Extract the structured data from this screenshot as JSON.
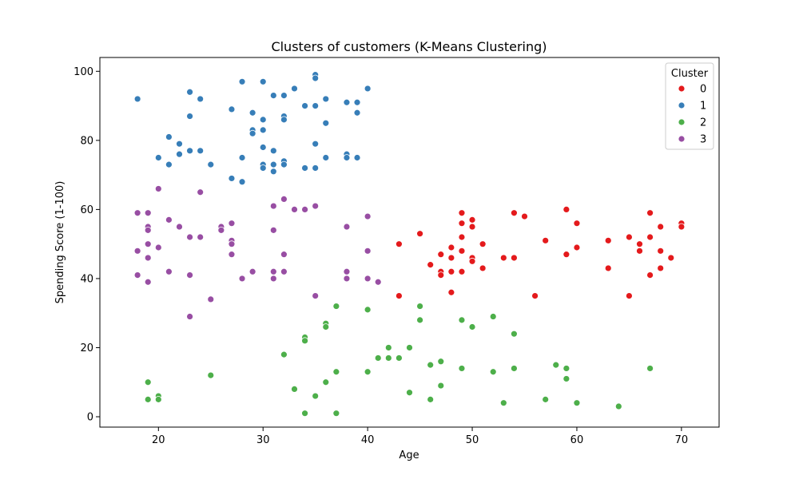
{
  "chart_data": {
    "type": "scatter",
    "title": "Clusters of customers (K-Means Clustering)",
    "xlabel": "Age",
    "ylabel": "Spending Score (1-100)",
    "xlim": [
      14.4,
      73.6
    ],
    "ylim": [
      -3.0,
      104.0
    ],
    "xticks": [
      20,
      30,
      40,
      50,
      60,
      70
    ],
    "yticks": [
      0,
      20,
      40,
      60,
      80,
      100
    ],
    "grid": false,
    "legend": {
      "title": "Cluster",
      "position": "upper-right"
    },
    "series": [
      {
        "name": "0",
        "color": "#e41a1c",
        "points": [
          [
            43,
            50
          ],
          [
            43,
            35
          ],
          [
            45,
            53
          ],
          [
            46,
            44
          ],
          [
            47,
            42
          ],
          [
            47,
            41
          ],
          [
            47,
            47
          ],
          [
            48,
            36
          ],
          [
            48,
            42
          ],
          [
            48,
            46
          ],
          [
            48,
            49
          ],
          [
            49,
            59
          ],
          [
            49,
            56
          ],
          [
            49,
            52
          ],
          [
            49,
            48
          ],
          [
            49,
            42
          ],
          [
            50,
            57
          ],
          [
            50,
            55
          ],
          [
            50,
            46
          ],
          [
            50,
            45
          ],
          [
            51,
            50
          ],
          [
            51,
            43
          ],
          [
            53,
            46
          ],
          [
            54,
            59
          ],
          [
            54,
            46
          ],
          [
            55,
            58
          ],
          [
            56,
            35
          ],
          [
            57,
            51
          ],
          [
            59,
            60
          ],
          [
            59,
            47
          ],
          [
            60,
            56
          ],
          [
            60,
            49
          ],
          [
            63,
            51
          ],
          [
            63,
            43
          ],
          [
            65,
            52
          ],
          [
            65,
            35
          ],
          [
            66,
            50
          ],
          [
            66,
            48
          ],
          [
            67,
            59
          ],
          [
            67,
            52
          ],
          [
            67,
            41
          ],
          [
            68,
            55
          ],
          [
            68,
            48
          ],
          [
            68,
            43
          ],
          [
            69,
            46
          ],
          [
            70,
            56
          ],
          [
            70,
            55
          ]
        ]
      },
      {
        "name": "1",
        "color": "#377eb8",
        "points": [
          [
            18,
            92
          ],
          [
            20,
            75
          ],
          [
            21,
            81
          ],
          [
            21,
            73
          ],
          [
            22,
            79
          ],
          [
            22,
            76
          ],
          [
            23,
            94
          ],
          [
            23,
            87
          ],
          [
            23,
            77
          ],
          [
            24,
            92
          ],
          [
            24,
            77
          ],
          [
            25,
            73
          ],
          [
            27,
            89
          ],
          [
            27,
            69
          ],
          [
            28,
            97
          ],
          [
            28,
            75
          ],
          [
            28,
            68
          ],
          [
            29,
            88
          ],
          [
            29,
            83
          ],
          [
            29,
            82
          ],
          [
            30,
            97
          ],
          [
            30,
            86
          ],
          [
            30,
            83
          ],
          [
            30,
            78
          ],
          [
            30,
            73
          ],
          [
            30,
            72
          ],
          [
            31,
            93
          ],
          [
            31,
            77
          ],
          [
            31,
            73
          ],
          [
            31,
            71
          ],
          [
            32,
            93
          ],
          [
            32,
            87
          ],
          [
            32,
            86
          ],
          [
            32,
            74
          ],
          [
            32,
            73
          ],
          [
            33,
            95
          ],
          [
            34,
            90
          ],
          [
            34,
            72
          ],
          [
            35,
            99
          ],
          [
            35,
            98
          ],
          [
            35,
            90
          ],
          [
            35,
            79
          ],
          [
            35,
            72
          ],
          [
            36,
            92
          ],
          [
            36,
            85
          ],
          [
            36,
            75
          ],
          [
            38,
            91
          ],
          [
            38,
            76
          ],
          [
            38,
            75
          ],
          [
            39,
            91
          ],
          [
            39,
            88
          ],
          [
            39,
            75
          ],
          [
            40,
            95
          ]
        ]
      },
      {
        "name": "2",
        "color": "#4daf4a",
        "points": [
          [
            19,
            10
          ],
          [
            19,
            5
          ],
          [
            20,
            6
          ],
          [
            20,
            5
          ],
          [
            25,
            12
          ],
          [
            32,
            18
          ],
          [
            33,
            8
          ],
          [
            34,
            23
          ],
          [
            34,
            22
          ],
          [
            34,
            1
          ],
          [
            35,
            6
          ],
          [
            36,
            27
          ],
          [
            36,
            26
          ],
          [
            36,
            10
          ],
          [
            37,
            32
          ],
          [
            37,
            13
          ],
          [
            37,
            1
          ],
          [
            40,
            31
          ],
          [
            40,
            13
          ],
          [
            41,
            17
          ],
          [
            42,
            20
          ],
          [
            42,
            17
          ],
          [
            43,
            17
          ],
          [
            44,
            20
          ],
          [
            44,
            7
          ],
          [
            45,
            32
          ],
          [
            45,
            28
          ],
          [
            46,
            15
          ],
          [
            46,
            5
          ],
          [
            47,
            16
          ],
          [
            47,
            9
          ],
          [
            49,
            28
          ],
          [
            49,
            14
          ],
          [
            50,
            26
          ],
          [
            52,
            29
          ],
          [
            52,
            13
          ],
          [
            53,
            4
          ],
          [
            54,
            24
          ],
          [
            54,
            14
          ],
          [
            57,
            5
          ],
          [
            58,
            15
          ],
          [
            59,
            14
          ],
          [
            59,
            11
          ],
          [
            60,
            4
          ],
          [
            64,
            3
          ],
          [
            67,
            14
          ]
        ]
      },
      {
        "name": "3",
        "color": "#984ea3",
        "points": [
          [
            18,
            59
          ],
          [
            18,
            48
          ],
          [
            18,
            41
          ],
          [
            19,
            59
          ],
          [
            19,
            55
          ],
          [
            19,
            54
          ],
          [
            19,
            50
          ],
          [
            19,
            46
          ],
          [
            19,
            39
          ],
          [
            20,
            66
          ],
          [
            20,
            49
          ],
          [
            21,
            57
          ],
          [
            21,
            42
          ],
          [
            22,
            55
          ],
          [
            23,
            52
          ],
          [
            23,
            41
          ],
          [
            23,
            29
          ],
          [
            24,
            65
          ],
          [
            24,
            52
          ],
          [
            25,
            34
          ],
          [
            26,
            55
          ],
          [
            26,
            54
          ],
          [
            27,
            56
          ],
          [
            27,
            51
          ],
          [
            27,
            50
          ],
          [
            27,
            47
          ],
          [
            28,
            40
          ],
          [
            29,
            42
          ],
          [
            31,
            61
          ],
          [
            31,
            54
          ],
          [
            31,
            42
          ],
          [
            31,
            40
          ],
          [
            32,
            63
          ],
          [
            32,
            47
          ],
          [
            32,
            42
          ],
          [
            33,
            60
          ],
          [
            34,
            60
          ],
          [
            35,
            61
          ],
          [
            35,
            35
          ],
          [
            38,
            55
          ],
          [
            38,
            42
          ],
          [
            38,
            40
          ],
          [
            40,
            58
          ],
          [
            40,
            48
          ],
          [
            40,
            40
          ],
          [
            41,
            39
          ]
        ]
      }
    ]
  }
}
